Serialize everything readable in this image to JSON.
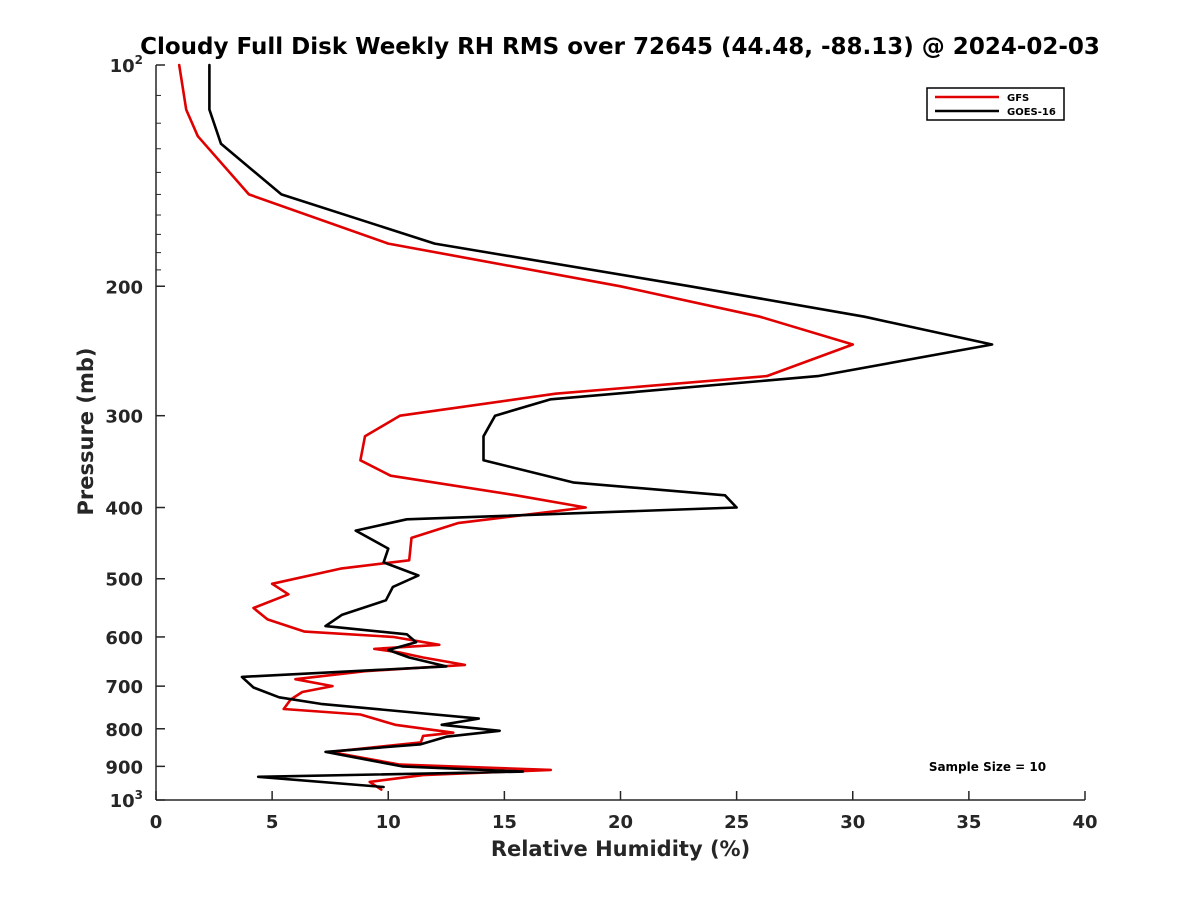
{
  "chart_data": {
    "type": "line",
    "title": "Cloudy Full Disk Weekly RH RMS over 72645 (44.48, -88.13) @ 2024-02-03",
    "xlabel": "Relative Humidity (%)",
    "ylabel": "Pressure (mb)",
    "xlim": [
      0,
      40
    ],
    "ylim": [
      100,
      1000
    ],
    "yscale": "log",
    "y_reversed": true,
    "grid": false,
    "legend_position": "top-right",
    "x_ticks": [
      "0",
      "5",
      "10",
      "15",
      "20",
      "25",
      "30",
      "35",
      "40"
    ],
    "y_ticks": [
      {
        "value": 100,
        "label": "10",
        "exp": "2"
      },
      {
        "value": 200,
        "label": "200"
      },
      {
        "value": 300,
        "label": "300"
      },
      {
        "value": 400,
        "label": "400"
      },
      {
        "value": 500,
        "label": "500"
      },
      {
        "value": 600,
        "label": "600"
      },
      {
        "value": 700,
        "label": "700"
      },
      {
        "value": 800,
        "label": "800"
      },
      {
        "value": 900,
        "label": "900"
      },
      {
        "value": 1000,
        "label": "10",
        "exp": "3"
      }
    ],
    "annotation": "Sample Size = 10",
    "series": [
      {
        "name": "GFS",
        "color": "#e00000",
        "points": [
          [
            1.0,
            100
          ],
          [
            1.3,
            115
          ],
          [
            1.8,
            125
          ],
          [
            4.0,
            150
          ],
          [
            10.0,
            175
          ],
          [
            20.0,
            200
          ],
          [
            26.0,
            220
          ],
          [
            30.0,
            240
          ],
          [
            26.3,
            265
          ],
          [
            17.2,
            280
          ],
          [
            10.5,
            300
          ],
          [
            9.0,
            320
          ],
          [
            8.8,
            345
          ],
          [
            10.1,
            362
          ],
          [
            15.5,
            385
          ],
          [
            18.5,
            400
          ],
          [
            13.0,
            420
          ],
          [
            11.0,
            440
          ],
          [
            10.9,
            472
          ],
          [
            8.0,
            484
          ],
          [
            5.0,
            508
          ],
          [
            5.7,
            525
          ],
          [
            4.2,
            548
          ],
          [
            4.8,
            568
          ],
          [
            6.4,
            590
          ],
          [
            10.2,
            600
          ],
          [
            12.2,
            615
          ],
          [
            9.4,
            623
          ],
          [
            10.5,
            630
          ],
          [
            11.5,
            640
          ],
          [
            13.3,
            655
          ],
          [
            9.0,
            668
          ],
          [
            6.0,
            685
          ],
          [
            7.6,
            700
          ],
          [
            6.3,
            713
          ],
          [
            5.8,
            730
          ],
          [
            5.5,
            752
          ],
          [
            8.8,
            765
          ],
          [
            10.3,
            790
          ],
          [
            12.8,
            810
          ],
          [
            11.5,
            818
          ],
          [
            11.4,
            835
          ],
          [
            7.5,
            860
          ],
          [
            10.5,
            895
          ],
          [
            17.0,
            910
          ],
          [
            11.5,
            925
          ],
          [
            9.2,
            945
          ],
          [
            9.7,
            968
          ]
        ]
      },
      {
        "name": "GOES-16",
        "color": "#000000",
        "points": [
          [
            2.3,
            100
          ],
          [
            2.3,
            115
          ],
          [
            2.8,
            128
          ],
          [
            5.4,
            150
          ],
          [
            12.0,
            175
          ],
          [
            23.0,
            200
          ],
          [
            30.5,
            220
          ],
          [
            36.0,
            240
          ],
          [
            28.5,
            265
          ],
          [
            17.0,
            285
          ],
          [
            14.6,
            300
          ],
          [
            14.1,
            320
          ],
          [
            14.1,
            345
          ],
          [
            18.0,
            370
          ],
          [
            24.5,
            385
          ],
          [
            25.0,
            400
          ],
          [
            10.8,
            415
          ],
          [
            8.6,
            430
          ],
          [
            10.0,
            455
          ],
          [
            9.8,
            475
          ],
          [
            11.3,
            495
          ],
          [
            10.2,
            513
          ],
          [
            9.9,
            535
          ],
          [
            8.0,
            560
          ],
          [
            7.3,
            580
          ],
          [
            10.8,
            595
          ],
          [
            11.2,
            610
          ],
          [
            10.0,
            625
          ],
          [
            10.9,
            640
          ],
          [
            12.5,
            658
          ],
          [
            3.7,
            680
          ],
          [
            4.2,
            703
          ],
          [
            5.3,
            725
          ],
          [
            7.1,
            740
          ],
          [
            13.9,
            775
          ],
          [
            12.3,
            790
          ],
          [
            14.8,
            805
          ],
          [
            12.5,
            820
          ],
          [
            11.4,
            840
          ],
          [
            7.3,
            860
          ],
          [
            10.6,
            900
          ],
          [
            15.8,
            915
          ],
          [
            4.4,
            930
          ],
          [
            9.8,
            960
          ]
        ]
      }
    ]
  }
}
